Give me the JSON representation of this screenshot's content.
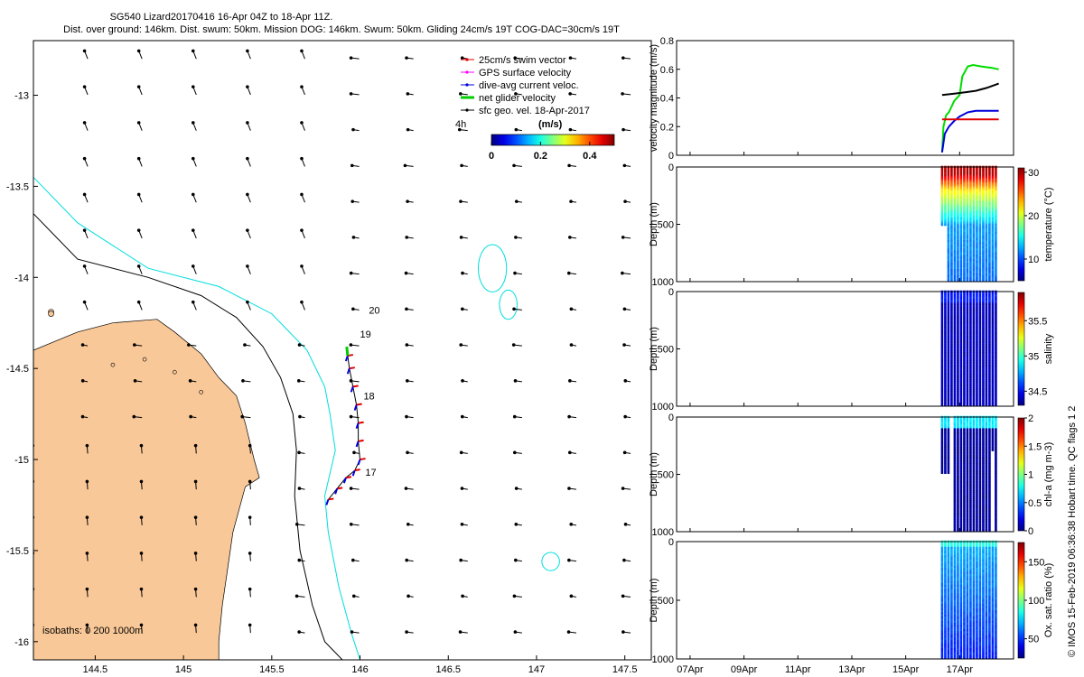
{
  "title": {
    "line1": "SG540 Lizard20170416 16-Apr 04Z to 18-Apr 11Z.",
    "line2": "Dist. over ground: 146km. Dist. swum: 50km. Mission DOG: 146km. Swum: 50km. Gliding 24cm/s 19T COG-DAC=30cm/s 19T"
  },
  "credit": "© IMOS 15-Feb-2019 06:36:38 Hobart time. QC flags 1  2",
  "chart_data": [
    {
      "id": "map",
      "type": "scatter",
      "xlim": [
        144.15,
        147.65
      ],
      "ylim": [
        -16.1,
        -12.7
      ],
      "xticks": [
        144.5,
        145,
        145.5,
        146,
        146.5,
        147,
        147.5
      ],
      "xtick_labels": [
        "144.5",
        "145",
        "145.5",
        "146",
        "146.5",
        "147",
        "147.5"
      ],
      "yticks": [
        -13,
        -13.5,
        -14,
        -14.5,
        -15,
        -15.5,
        -16
      ],
      "ytick_labels": [
        "-13",
        "-13.5",
        "-14",
        "-14.5",
        "-15",
        "-15.5",
        "-16"
      ],
      "legend": {
        "placement": "top-right",
        "entries": [
          {
            "label": "25cm/s swim vector",
            "color": "#e00000"
          },
          {
            "label": "GPS surface velocity",
            "color": "#ff00ff"
          },
          {
            "label": "dive-avg current veloc.",
            "color": "#0000dd"
          },
          {
            "label": "net glider velocity",
            "color": "#00cc00"
          },
          {
            "label": "sfc geo. vel. 18-Apr-2017",
            "color": "#000000"
          }
        ]
      },
      "colorbar": {
        "label": "(m/s)",
        "ticks": [
          "0",
          "0.2",
          "0.4"
        ],
        "range": [
          0,
          0.5
        ]
      },
      "time_label": "4h",
      "isobath_label": "isobaths: 0   200  1000m",
      "day_labels": [
        {
          "text": "20",
          "lon": 146.05,
          "lat": -14.2
        },
        {
          "text": "19",
          "lon": 146.0,
          "lat": -14.33
        },
        {
          "text": "18",
          "lon": 146.02,
          "lat": -14.67
        },
        {
          "text": "17",
          "lon": 146.03,
          "lat": -15.09
        }
      ],
      "track": [
        [
          145.82,
          -15.22
        ],
        [
          145.87,
          -15.16
        ],
        [
          145.92,
          -15.1
        ],
        [
          145.97,
          -15.06
        ],
        [
          146.0,
          -15.0
        ],
        [
          145.99,
          -14.9
        ],
        [
          145.99,
          -14.8
        ],
        [
          145.98,
          -14.7
        ],
        [
          145.96,
          -14.6
        ],
        [
          145.94,
          -14.5
        ],
        [
          145.93,
          -14.43
        ]
      ],
      "surface_current": {
        "u": -0.22,
        "v": 0.03,
        "units": "m/s"
      },
      "coast": [
        [
          144.15,
          -14.4
        ],
        [
          144.4,
          -14.3
        ],
        [
          144.6,
          -14.25
        ],
        [
          144.85,
          -14.23
        ],
        [
          144.95,
          -14.3
        ],
        [
          145.1,
          -14.42
        ],
        [
          145.2,
          -14.55
        ],
        [
          145.3,
          -14.65
        ],
        [
          145.35,
          -14.8
        ],
        [
          145.4,
          -15.0
        ],
        [
          145.43,
          -15.1
        ],
        [
          145.35,
          -15.15
        ],
        [
          145.28,
          -15.4
        ],
        [
          145.25,
          -15.6
        ],
        [
          145.22,
          -15.8
        ],
        [
          145.2,
          -16.0
        ],
        [
          145.2,
          -16.1
        ],
        [
          144.15,
          -16.1
        ]
      ],
      "isobath_200": [
        [
          144.15,
          -13.65
        ],
        [
          144.4,
          -13.9
        ],
        [
          144.8,
          -14.0
        ],
        [
          145.1,
          -14.1
        ],
        [
          145.3,
          -14.22
        ],
        [
          145.45,
          -14.38
        ],
        [
          145.55,
          -14.55
        ],
        [
          145.62,
          -14.75
        ],
        [
          145.64,
          -14.95
        ],
        [
          145.63,
          -15.2
        ],
        [
          145.66,
          -15.5
        ],
        [
          145.73,
          -15.8
        ],
        [
          145.8,
          -16.0
        ],
        [
          145.9,
          -16.1
        ]
      ],
      "isobath_1000": [
        [
          144.15,
          -13.45
        ],
        [
          144.4,
          -13.7
        ],
        [
          144.8,
          -13.95
        ],
        [
          145.2,
          -14.05
        ],
        [
          145.5,
          -14.2
        ],
        [
          145.7,
          -14.4
        ],
        [
          145.8,
          -14.6
        ],
        [
          145.83,
          -14.75
        ],
        [
          145.86,
          -14.95
        ],
        [
          145.8,
          -15.2
        ],
        [
          145.82,
          -15.4
        ],
        [
          145.88,
          -15.7
        ],
        [
          145.95,
          -15.95
        ],
        [
          146.0,
          -16.1
        ]
      ],
      "rings": [
        {
          "lon": 146.75,
          "lat": -13.95,
          "rlon": 0.08,
          "rlat": 0.13
        },
        {
          "lon": 146.84,
          "lat": -14.15,
          "rlon": 0.05,
          "rlat": 0.08
        },
        {
          "lon": 147.08,
          "lat": -15.56,
          "rlon": 0.05,
          "rlat": 0.05
        }
      ]
    },
    {
      "id": "velocity",
      "type": "line",
      "ylabel": "velocity magnitude (m/s)",
      "ylim": [
        0,
        0.8
      ],
      "yticks": [
        0,
        0.2,
        0.4,
        0.6,
        0.8
      ],
      "ytick_labels": [
        "0",
        "0.2",
        "0.4",
        "0.6",
        "0.8"
      ],
      "series": [
        {
          "color": "#00dd00",
          "values": [
            [
              16.35,
              0.02
            ],
            [
              16.4,
              0.2
            ],
            [
              16.5,
              0.28
            ],
            [
              16.6,
              0.3
            ],
            [
              16.8,
              0.38
            ],
            [
              17.0,
              0.42
            ],
            [
              17.1,
              0.55
            ],
            [
              17.3,
              0.62
            ],
            [
              17.5,
              0.63
            ],
            [
              17.8,
              0.62
            ],
            [
              18.2,
              0.61
            ],
            [
              18.45,
              0.6
            ]
          ]
        },
        {
          "color": "#0000dd",
          "values": [
            [
              16.35,
              0.02
            ],
            [
              16.45,
              0.15
            ],
            [
              16.6,
              0.2
            ],
            [
              16.8,
              0.24
            ],
            [
              17.0,
              0.27
            ],
            [
              17.3,
              0.3
            ],
            [
              17.6,
              0.31
            ],
            [
              18.0,
              0.31
            ],
            [
              18.45,
              0.31
            ]
          ]
        },
        {
          "color": "#000000",
          "values": [
            [
              16.35,
              0.42
            ],
            [
              16.8,
              0.43
            ],
            [
              17.2,
              0.44
            ],
            [
              17.6,
              0.45
            ],
            [
              18.0,
              0.47
            ],
            [
              18.45,
              0.5
            ]
          ]
        },
        {
          "color": "#e00000",
          "values": [
            [
              16.35,
              0.25
            ],
            [
              18.45,
              0.25
            ]
          ]
        }
      ]
    },
    {
      "id": "temperature",
      "type": "scatter",
      "ylabel": "Depth (m)",
      "ylim": [
        1000,
        0
      ],
      "yticks": [
        0,
        500,
        1000
      ],
      "ytick_labels": [
        "0",
        "500",
        "1000"
      ],
      "colorbar": {
        "label": "temperature (°C)",
        "range": [
          5,
          31
        ],
        "ticks": [
          10,
          20,
          30
        ],
        "tick_labels": [
          "10",
          "20",
          "30"
        ],
        "cmap": "jet"
      }
    },
    {
      "id": "salinity",
      "type": "scatter",
      "ylabel": "Depth (m)",
      "ylim": [
        1000,
        0
      ],
      "yticks": [
        0,
        500,
        1000
      ],
      "ytick_labels": [
        "0",
        "500",
        "1000"
      ],
      "colorbar": {
        "label": "salinity",
        "range": [
          34.3,
          35.9
        ],
        "ticks": [
          34.5,
          35,
          35.5
        ],
        "tick_labels": [
          "34.5",
          "35",
          "35.5"
        ],
        "cmap": "jet"
      }
    },
    {
      "id": "chla",
      "type": "scatter",
      "ylabel": "Depth (m)",
      "ylim": [
        1000,
        0
      ],
      "yticks": [
        0,
        500,
        1000
      ],
      "ytick_labels": [
        "0",
        "500",
        "1000"
      ],
      "colorbar": {
        "label": "chl-a (mg m-3)",
        "range": [
          0,
          2
        ],
        "ticks": [
          0,
          0.5,
          1,
          1.5,
          2
        ],
        "tick_labels": [
          "0",
          "0.5",
          "1",
          "1.5",
          "2"
        ],
        "cmap": "jet"
      }
    },
    {
      "id": "oxygen",
      "type": "scatter",
      "ylabel": "Depth (m)",
      "ylim": [
        1000,
        0
      ],
      "yticks": [
        0,
        500,
        1000
      ],
      "ytick_labels": [
        "0",
        "500",
        "1000"
      ],
      "colorbar": {
        "label": "Ox. sat. ratio (%)",
        "range": [
          25,
          175
        ],
        "ticks": [
          50,
          100,
          150
        ],
        "tick_labels": [
          "50",
          "100",
          "150"
        ],
        "cmap": "jet"
      }
    }
  ],
  "time_axis": {
    "xlim": [
      6.5,
      19.0
    ],
    "ticks": [
      7,
      9,
      11,
      13,
      15,
      17
    ],
    "tick_labels": [
      "07Apr",
      "09Apr",
      "11Apr",
      "13Apr",
      "15Apr",
      "17Apr"
    ],
    "data_start": 16.35,
    "data_end": 18.45
  }
}
